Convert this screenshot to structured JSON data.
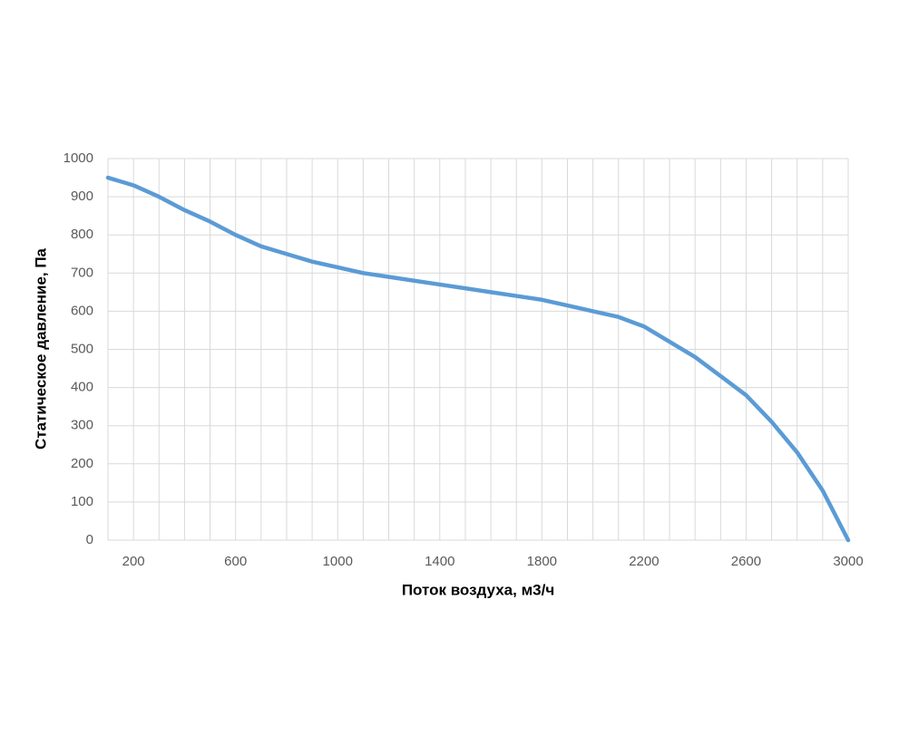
{
  "chart_data": {
    "type": "line",
    "x_label": "Поток воздуха, м3/ч",
    "y_label": "Статическое давление, Па",
    "x": [
      100,
      200,
      300,
      400,
      500,
      600,
      700,
      800,
      900,
      1000,
      1100,
      1200,
      1300,
      1400,
      1500,
      1600,
      1700,
      1800,
      1900,
      2000,
      2100,
      2200,
      2300,
      2400,
      2500,
      2600,
      2700,
      2800,
      2900,
      3000
    ],
    "series": [
      {
        "color": "#5b9bd5",
        "values": [
          950,
          930,
          900,
          865,
          835,
          800,
          770,
          750,
          730,
          715,
          700,
          690,
          680,
          670,
          660,
          650,
          640,
          630,
          615,
          600,
          585,
          560,
          520,
          480,
          430,
          380,
          310,
          230,
          130,
          0
        ]
      }
    ],
    "xlim": [
      100,
      3000
    ],
    "xticks": [
      200,
      600,
      1000,
      1400,
      1800,
      2200,
      2600,
      3000
    ],
    "xgridlines": [
      100,
      200,
      300,
      400,
      500,
      600,
      700,
      800,
      900,
      1000,
      1100,
      1200,
      1300,
      1400,
      1500,
      1600,
      1700,
      1800,
      1900,
      2000,
      2100,
      2200,
      2300,
      2400,
      2500,
      2600,
      2700,
      2800,
      2900,
      3000
    ],
    "ylim": [
      0,
      1000
    ],
    "yticks": [
      0,
      100,
      200,
      300,
      400,
      500,
      600,
      700,
      800,
      900,
      1000
    ],
    "grid": true,
    "grid_color": "#d9d9d9"
  }
}
